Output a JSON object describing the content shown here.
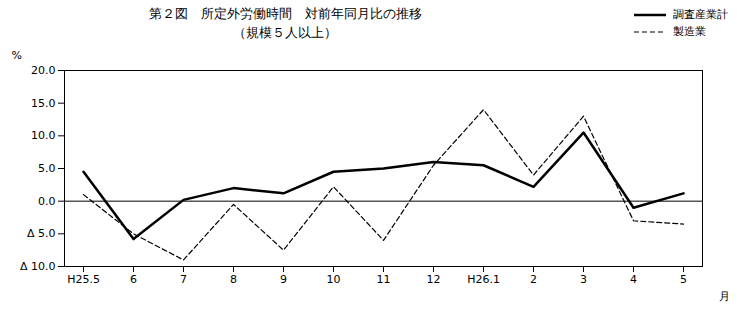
{
  "chart_data": {
    "type": "line",
    "title": "第２図　所定外労働時間　対前年同月比の推移",
    "subtitle": "（規模５人以上）",
    "x_label": "月",
    "y_label": "%",
    "categories": [
      "H25.5",
      "6",
      "7",
      "8",
      "9",
      "10",
      "11",
      "12",
      "H26.1",
      "2",
      "3",
      "4",
      "5"
    ],
    "series": [
      {
        "name": "調査産業計",
        "color": "#000000",
        "line_style": "solid",
        "values": [
          4.5,
          -5.8,
          0.2,
          2.0,
          1.2,
          4.5,
          5.0,
          6.0,
          5.5,
          2.2,
          10.5,
          -1.0,
          1.2
        ]
      },
      {
        "name": "製造業",
        "color": "#000000",
        "line_style": "dashed",
        "values": [
          1.0,
          -5.0,
          -9.0,
          -0.5,
          -7.5,
          2.2,
          -6.0,
          5.5,
          14.0,
          4.0,
          13.0,
          -3.0,
          -3.5
        ]
      }
    ],
    "ylim": [
      -10.0,
      20.0
    ],
    "yticks": [
      {
        "value": -10.0,
        "label": "Δ 10.0"
      },
      {
        "value": -5.0,
        "label": "Δ 5.0"
      },
      {
        "value": 0.0,
        "label": "0.0"
      },
      {
        "value": 5.0,
        "label": "5.0"
      },
      {
        "value": 10.0,
        "label": "10.0"
      },
      {
        "value": 15.0,
        "label": "15.0"
      },
      {
        "value": 20.0,
        "label": "20.0"
      }
    ],
    "grid": false,
    "legend": "upper right"
  }
}
